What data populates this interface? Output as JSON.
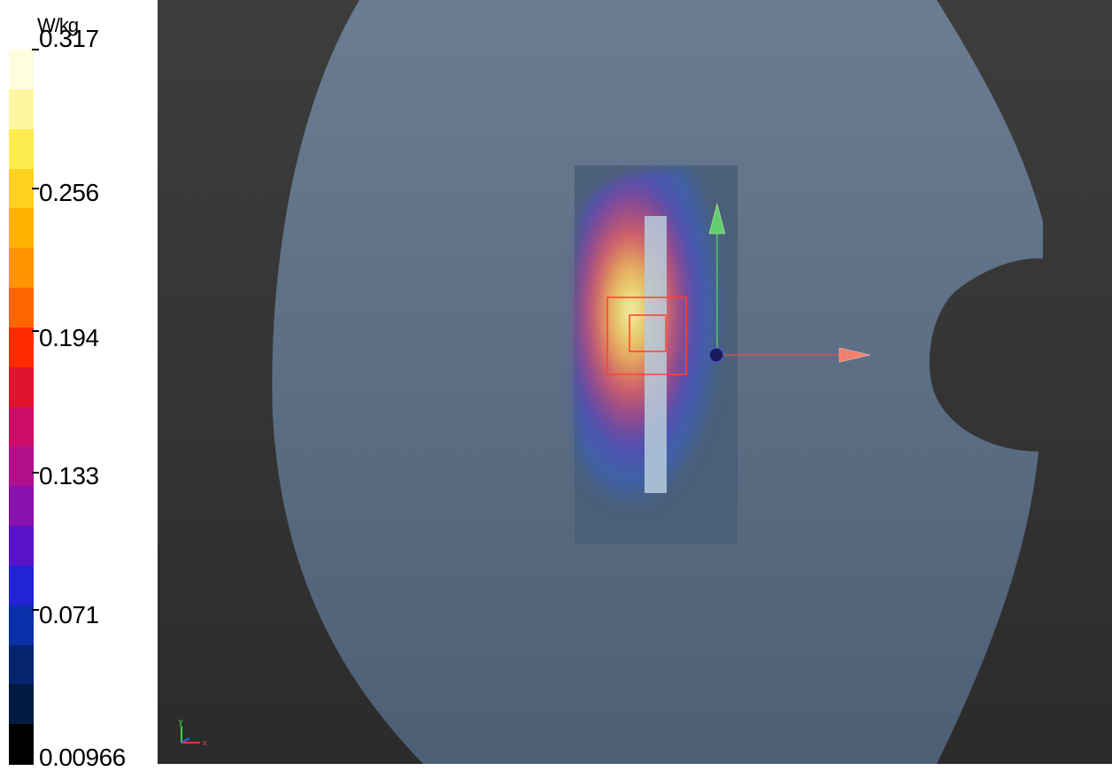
{
  "legend": {
    "unit": "W/kg",
    "ticks": [
      "0.317",
      "0.256",
      "0.194",
      "0.133",
      "0.071",
      "0.00966"
    ],
    "colors": [
      "#fffde0",
      "#fff7a0",
      "#ffec50",
      "#ffd21e",
      "#ffb300",
      "#ff9400",
      "#ff6600",
      "#ff2a00",
      "#e0142e",
      "#cc0c66",
      "#b0108c",
      "#8a10b0",
      "#5a14c8",
      "#2222d6",
      "#0a2fa8",
      "#06246e",
      "#031a40",
      "#000000"
    ]
  },
  "viewport": {
    "phantom_color": "#6a7d94",
    "axis_labels": {
      "x": "x",
      "y": "y"
    }
  }
}
